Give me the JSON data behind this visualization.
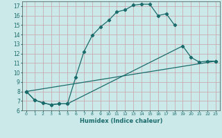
{
  "xlabel": "Humidex (Indice chaleur)",
  "xlim": [
    -0.5,
    23.5
  ],
  "ylim": [
    6,
    17.5
  ],
  "xticks": [
    0,
    1,
    2,
    3,
    4,
    5,
    6,
    7,
    8,
    9,
    10,
    11,
    12,
    13,
    14,
    15,
    16,
    17,
    18,
    19,
    20,
    21,
    22,
    23
  ],
  "yticks": [
    6,
    7,
    8,
    9,
    10,
    11,
    12,
    13,
    14,
    15,
    16,
    17
  ],
  "bg_color": "#cce9e9",
  "grid_color": "#c8a0a8",
  "line_color": "#1a6b6b",
  "line1_x": [
    0,
    1,
    2,
    3,
    4,
    5,
    6,
    7,
    8,
    9,
    10,
    11,
    12,
    13,
    14,
    15,
    16,
    17,
    18
  ],
  "line1_y": [
    8.0,
    7.1,
    6.8,
    6.6,
    6.7,
    6.7,
    9.5,
    12.2,
    13.9,
    14.8,
    15.5,
    16.4,
    16.6,
    17.1,
    17.2,
    17.2,
    16.0,
    16.2,
    15.0
  ],
  "line2_x": [
    0,
    1,
    2,
    3,
    4,
    5,
    19,
    20,
    21,
    22,
    23
  ],
  "line2_y": [
    8.0,
    7.1,
    6.8,
    6.6,
    6.7,
    6.7,
    12.8,
    11.6,
    11.1,
    11.2,
    11.2
  ],
  "line3_x": [
    0,
    23
  ],
  "line3_y": [
    8.0,
    11.2
  ],
  "marker": "D",
  "markersize": 2.2,
  "linewidth": 0.9
}
